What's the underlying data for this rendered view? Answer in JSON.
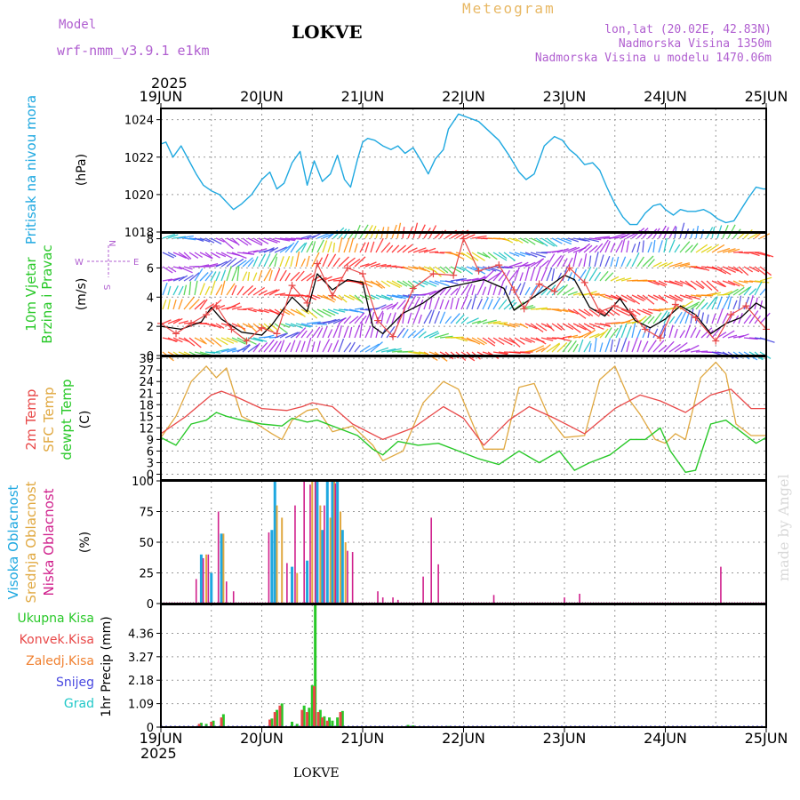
{
  "header": {
    "model_label": "Model",
    "model_name": "wrf-nmm_v3.9.1 e1km",
    "title": "Meteogram",
    "station": "LOKVE",
    "lonlat": "lon,lat (20.02E, 42.83N)",
    "elevation": "Nadmorska Visina 1350m",
    "model_elevation": "Nadmorska Visina u modelu 1470.06m",
    "year_top": "2025",
    "year_bottom": "2025",
    "station_bottom": "LOKVE",
    "watermark": "made by Angel"
  },
  "colors": {
    "pressure": "#1ea8e0",
    "t2m": "#e84848",
    "tsfc": "#e0a840",
    "tdew": "#28c828",
    "cloud_high": "#1ea8e0",
    "cloud_mid": "#e0a840",
    "cloud_low": "#d0208c",
    "precip_total": "#28c828",
    "precip_conv": "#e84848",
    "precip_frozen": "#f08030",
    "snow": "#4848e0",
    "graupel": "#20c8c8",
    "wind_speed": "#000000",
    "wind_gust": "#e84848"
  },
  "chart_data": [
    {
      "type": "line",
      "id": "pressure",
      "ylabel": "Pritisak na nivou mora",
      "unit": "(hPa)",
      "ylim": [
        1018,
        1024.6
      ],
      "yticks": [
        1018,
        1020,
        1022,
        1024
      ],
      "x_ticks": [
        "19JUN",
        "20JUN",
        "21JUN",
        "22JUN",
        "23JUN",
        "24JUN",
        "25JUN"
      ],
      "grid": true,
      "series": [
        {
          "x": [
            0,
            0.05,
            0.12,
            0.2,
            0.28,
            0.35,
            0.42,
            0.5,
            0.58,
            0.65,
            0.72,
            0.8,
            0.9,
            1.0,
            1.08,
            1.15,
            1.22,
            1.3,
            1.38,
            1.45,
            1.52,
            1.6,
            1.68,
            1.75,
            1.82,
            1.88,
            1.95,
            2.0,
            2.05,
            2.12,
            2.2,
            2.28,
            2.35,
            2.42,
            2.5,
            2.58,
            2.65,
            2.72,
            2.8,
            2.85,
            2.95,
            3.05,
            3.15,
            3.25,
            3.35,
            3.45,
            3.55,
            3.62,
            3.7,
            3.8,
            3.9,
            3.98,
            4.05,
            4.12,
            4.2,
            4.28,
            4.35,
            4.42,
            4.5,
            4.58,
            4.65,
            4.72,
            4.8,
            4.88,
            4.95,
            5.0,
            5.08,
            5.15,
            5.22,
            5.3,
            5.38,
            5.45,
            5.52,
            5.6,
            5.68,
            5.75,
            5.82,
            5.9,
            5.97,
            6.0
          ],
          "values": [
            1022.7,
            1022.8,
            1022.0,
            1022.6,
            1021.8,
            1021.1,
            1020.5,
            1020.2,
            1020.0,
            1019.6,
            1019.2,
            1019.5,
            1020.0,
            1020.8,
            1021.2,
            1020.3,
            1020.6,
            1021.7,
            1022.3,
            1020.5,
            1021.8,
            1020.7,
            1021.1,
            1022.1,
            1020.8,
            1020.4,
            1021.9,
            1022.8,
            1023.0,
            1022.9,
            1022.6,
            1022.4,
            1022.6,
            1022.2,
            1022.5,
            1021.8,
            1021.1,
            1021.9,
            1022.4,
            1023.5,
            1024.3,
            1024.1,
            1023.9,
            1023.4,
            1022.9,
            1022.1,
            1021.2,
            1020.8,
            1021.1,
            1022.6,
            1023.1,
            1022.9,
            1022.4,
            1022.1,
            1021.6,
            1021.7,
            1021.3,
            1020.4,
            1019.5,
            1018.8,
            1018.4,
            1018.4,
            1019.0,
            1019.4,
            1019.5,
            1019.2,
            1018.9,
            1019.2,
            1019.1,
            1019.1,
            1019.2,
            1019.0,
            1018.7,
            1018.5,
            1018.6,
            1019.2,
            1019.8,
            1020.4,
            1020.3,
            1020.3
          ]
        }
      ]
    },
    {
      "type": "line",
      "id": "wind",
      "ylabel": "10m Vjetar Brzina i Pravac",
      "unit": "(m/s)",
      "compass": {
        "n": "N",
        "e": "E",
        "w": "W",
        "s": "S"
      },
      "ylim": [
        0,
        8.4
      ],
      "yticks": [
        0,
        2,
        4,
        6,
        8
      ],
      "grid": true,
      "series": [
        {
          "name": "speed",
          "x": [
            0,
            0.2,
            0.4,
            0.5,
            0.6,
            0.8,
            1.0,
            1.1,
            1.3,
            1.45,
            1.55,
            1.7,
            1.85,
            2.0,
            2.1,
            2.2,
            2.4,
            2.6,
            2.8,
            3.0,
            3.2,
            3.4,
            3.5,
            3.65,
            3.8,
            4.0,
            4.1,
            4.25,
            4.4,
            4.55,
            4.7,
            4.85,
            5.0,
            5.15,
            5.3,
            5.45,
            5.6,
            5.75,
            5.9,
            6.0
          ],
          "values": [
            2.0,
            1.8,
            2.3,
            3.3,
            2.5,
            1.6,
            1.4,
            2.1,
            4.0,
            3.0,
            5.6,
            4.5,
            5.2,
            5.0,
            2.0,
            1.5,
            2.9,
            3.6,
            4.6,
            4.9,
            5.2,
            4.6,
            3.1,
            3.8,
            4.5,
            5.5,
            5.2,
            3.3,
            2.7,
            3.9,
            2.4,
            1.9,
            2.5,
            3.4,
            2.8,
            1.5,
            2.2,
            2.6,
            3.6,
            3.2
          ]
        },
        {
          "name": "gust",
          "x": [
            0,
            0.15,
            0.3,
            0.45,
            0.55,
            0.7,
            0.85,
            1.0,
            1.15,
            1.3,
            1.45,
            1.55,
            1.7,
            1.85,
            2.0,
            2.15,
            2.3,
            2.5,
            2.7,
            2.9,
            3.0,
            3.15,
            3.35,
            3.5,
            3.6,
            3.75,
            3.9,
            4.05,
            4.2,
            4.35,
            4.5,
            4.65,
            4.8,
            4.95,
            5.1,
            5.3,
            5.5,
            5.65,
            5.8,
            6.0
          ],
          "values": [
            2.2,
            1.5,
            2.2,
            2.8,
            3.4,
            1.8,
            1.0,
            1.9,
            1.5,
            4.8,
            3.6,
            6.3,
            4.1,
            6.0,
            5.6,
            2.4,
            1.3,
            4.6,
            5.6,
            5.5,
            8.0,
            5.8,
            6.2,
            4.5,
            3.2,
            4.9,
            4.4,
            6.0,
            5.0,
            3.0,
            3.4,
            3.0,
            1.8,
            1.2,
            3.5,
            2.6,
            1.0,
            2.8,
            3.4,
            1.8
          ]
        }
      ]
    },
    {
      "type": "line",
      "id": "temperature",
      "labels": [
        "2m Temp",
        "SFC Temp",
        "dewpt Temp"
      ],
      "unit": "(C)",
      "ylim": [
        -1.5,
        30.5
      ],
      "yticks": [
        0,
        3,
        6,
        9,
        12,
        15,
        18,
        21,
        24,
        27,
        30
      ],
      "grid": true,
      "series": [
        {
          "name": "2m Temp",
          "x": [
            0,
            0.25,
            0.5,
            0.6,
            0.75,
            1.0,
            1.25,
            1.4,
            1.5,
            1.7,
            1.9,
            2.2,
            2.5,
            2.8,
            3.0,
            3.2,
            3.45,
            3.65,
            3.9,
            4.2,
            4.5,
            4.75,
            4.95,
            5.2,
            5.45,
            5.65,
            5.85,
            6.0
          ],
          "values": [
            10.5,
            15,
            20.5,
            21.5,
            20,
            17,
            16.5,
            17.5,
            18.5,
            17.5,
            13,
            9,
            12,
            17.5,
            14.5,
            7.5,
            14,
            17.5,
            14.5,
            10.5,
            17,
            20.5,
            19,
            16,
            20.5,
            22,
            17,
            17
          ]
        },
        {
          "name": "SFC Temp",
          "x": [
            0,
            0.15,
            0.3,
            0.45,
            0.55,
            0.65,
            0.8,
            0.95,
            1.1,
            1.2,
            1.3,
            1.45,
            1.55,
            1.7,
            1.9,
            2.1,
            2.2,
            2.4,
            2.6,
            2.8,
            2.95,
            3.1,
            3.2,
            3.4,
            3.55,
            3.7,
            3.85,
            4.0,
            4.2,
            4.35,
            4.5,
            4.65,
            4.75,
            4.9,
            5.0,
            5.1,
            5.2,
            5.35,
            5.5,
            5.6,
            5.7,
            5.85,
            6.0
          ],
          "values": [
            9.5,
            15,
            24,
            28,
            25,
            27.5,
            15,
            13,
            10.5,
            9,
            14,
            16.5,
            17,
            11,
            12.5,
            7.5,
            3.5,
            6,
            18.5,
            24,
            22,
            12.5,
            6.5,
            6.5,
            22.5,
            23.5,
            14.5,
            9.5,
            10,
            24.5,
            28,
            19,
            15.5,
            9,
            8,
            10.5,
            9,
            25,
            29,
            26,
            13,
            10,
            10
          ]
        },
        {
          "name": "dewpt Temp",
          "x": [
            0,
            0.15,
            0.3,
            0.45,
            0.55,
            0.65,
            0.8,
            1.0,
            1.2,
            1.3,
            1.45,
            1.55,
            1.75,
            1.95,
            2.1,
            2.2,
            2.35,
            2.55,
            2.75,
            2.95,
            3.15,
            3.35,
            3.55,
            3.75,
            3.95,
            4.1,
            4.25,
            4.45,
            4.65,
            4.8,
            4.95,
            5.05,
            5.2,
            5.3,
            5.45,
            5.6,
            5.75,
            5.9,
            6.0
          ],
          "values": [
            9.5,
            7.5,
            13,
            14,
            16,
            15,
            14,
            13,
            12.5,
            14.5,
            13.5,
            14,
            12,
            10,
            6.5,
            5,
            8.5,
            7.5,
            8,
            6,
            4,
            2.5,
            6,
            3,
            6,
            1,
            3,
            5,
            9,
            9,
            12,
            6,
            0.5,
            1,
            13,
            14,
            11,
            8,
            9.5
          ]
        }
      ]
    },
    {
      "type": "bar",
      "id": "clouds",
      "labels": [
        "Visoka Oblacnost",
        "Srednja Oblacnost",
        "Niska Oblacnost"
      ],
      "unit": "(%)",
      "ylim": [
        0,
        100
      ],
      "yticks": [
        0,
        25,
        50,
        75,
        100
      ],
      "grid": true,
      "series": [
        {
          "name": "Visoka Oblacnost",
          "x": [
            0.4,
            0.5,
            0.6,
            1.1,
            1.13,
            1.3,
            1.45,
            1.55,
            1.6,
            1.65,
            1.7,
            1.75,
            1.8
          ],
          "values": [
            40,
            25,
            57,
            60,
            100,
            30,
            35,
            100,
            60,
            100,
            100,
            100,
            60
          ]
        },
        {
          "name": "Srednja Oblacnost",
          "x": [
            0.45,
            0.62,
            1.15,
            1.2,
            1.35,
            1.5,
            1.58,
            1.68,
            1.72,
            1.78,
            1.83
          ],
          "values": [
            40,
            57,
            80,
            70,
            25,
            100,
            80,
            70,
            100,
            75,
            50
          ]
        },
        {
          "name": "Niska Oblacnost",
          "x": [
            0.35,
            0.42,
            0.47,
            0.57,
            0.65,
            0.72,
            1.07,
            1.25,
            1.33,
            1.42,
            1.48,
            1.53,
            1.62,
            1.73,
            1.85,
            1.9,
            2.15,
            2.2,
            2.3,
            2.35,
            2.6,
            2.68,
            2.75,
            3.3,
            4.0,
            4.15,
            5.55
          ],
          "values": [
            20,
            37,
            40,
            75,
            18,
            10,
            58,
            33,
            80,
            100,
            97,
            100,
            80,
            98,
            43,
            42,
            10,
            5,
            5,
            3,
            22,
            70,
            32,
            7,
            5,
            8,
            30
          ]
        }
      ]
    },
    {
      "type": "bar",
      "id": "precip",
      "labels": [
        "Ukupna Kisa",
        "Konvek.Kisa",
        "Zaledj.Kisa",
        "Snijeg",
        "Grad"
      ],
      "unit": "1hr Precip (mm)",
      "ylim": [
        0,
        5.7
      ],
      "yticks": [
        0,
        1.09,
        2.18,
        3.27,
        4.36
      ],
      "grid": true,
      "series": [
        {
          "name": "Ukupna Kisa",
          "x": [
            0.4,
            0.45,
            0.52,
            0.62,
            1.1,
            1.15,
            1.2,
            1.3,
            1.35,
            1.42,
            1.47,
            1.5,
            1.53,
            1.58,
            1.62,
            1.67,
            1.7,
            1.75,
            1.8,
            2.45,
            2.5,
            2.85
          ],
          "values": [
            0.2,
            0.15,
            0.3,
            0.6,
            0.4,
            0.8,
            1.1,
            0.25,
            0.15,
            1.0,
            0.9,
            1.95,
            5.7,
            0.8,
            0.5,
            0.45,
            0.3,
            0.45,
            0.75,
            0.1,
            0.08,
            0.05
          ]
        },
        {
          "name": "Konvek.Kisa",
          "x": [
            0.38,
            0.5,
            0.6,
            1.08,
            1.13,
            1.18,
            1.4,
            1.45,
            1.52,
            1.56,
            1.6,
            1.65,
            1.78
          ],
          "values": [
            0.15,
            0.25,
            0.45,
            0.35,
            0.7,
            1.0,
            0.8,
            0.7,
            1.9,
            0.7,
            0.45,
            0.3,
            0.7
          ]
        }
      ]
    }
  ]
}
